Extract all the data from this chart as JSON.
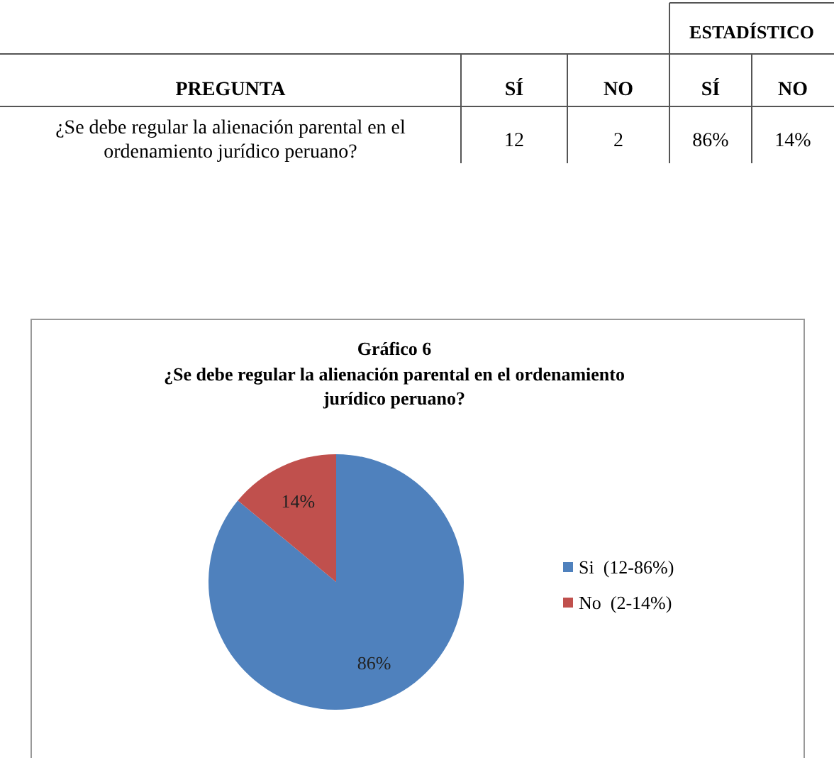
{
  "chart_data": [
    {
      "type": "other",
      "annotations": [
        "ESTADÍSTICO",
        "PREGUNTA",
        "SÍ",
        "NO",
        "SÍ",
        "NO",
        "¿Se debe regular la alienación parental en el ordenamiento jurídico peruano?",
        "12",
        "2",
        "86%",
        "14%"
      ]
    },
    {
      "type": "pie",
      "title": "Gráfico 6",
      "subtitle": "¿Se debe regular la alienación parental en el ordenamiento jurídico peruano?",
      "categories": [
        "Si  (12-86%)",
        "No  (2-14%)"
      ],
      "values": [
        86,
        14
      ],
      "colors": [
        "#4f81bd",
        "#c0504d"
      ],
      "value_labels": [
        "86%",
        "14%"
      ],
      "legend": "right"
    }
  ]
}
